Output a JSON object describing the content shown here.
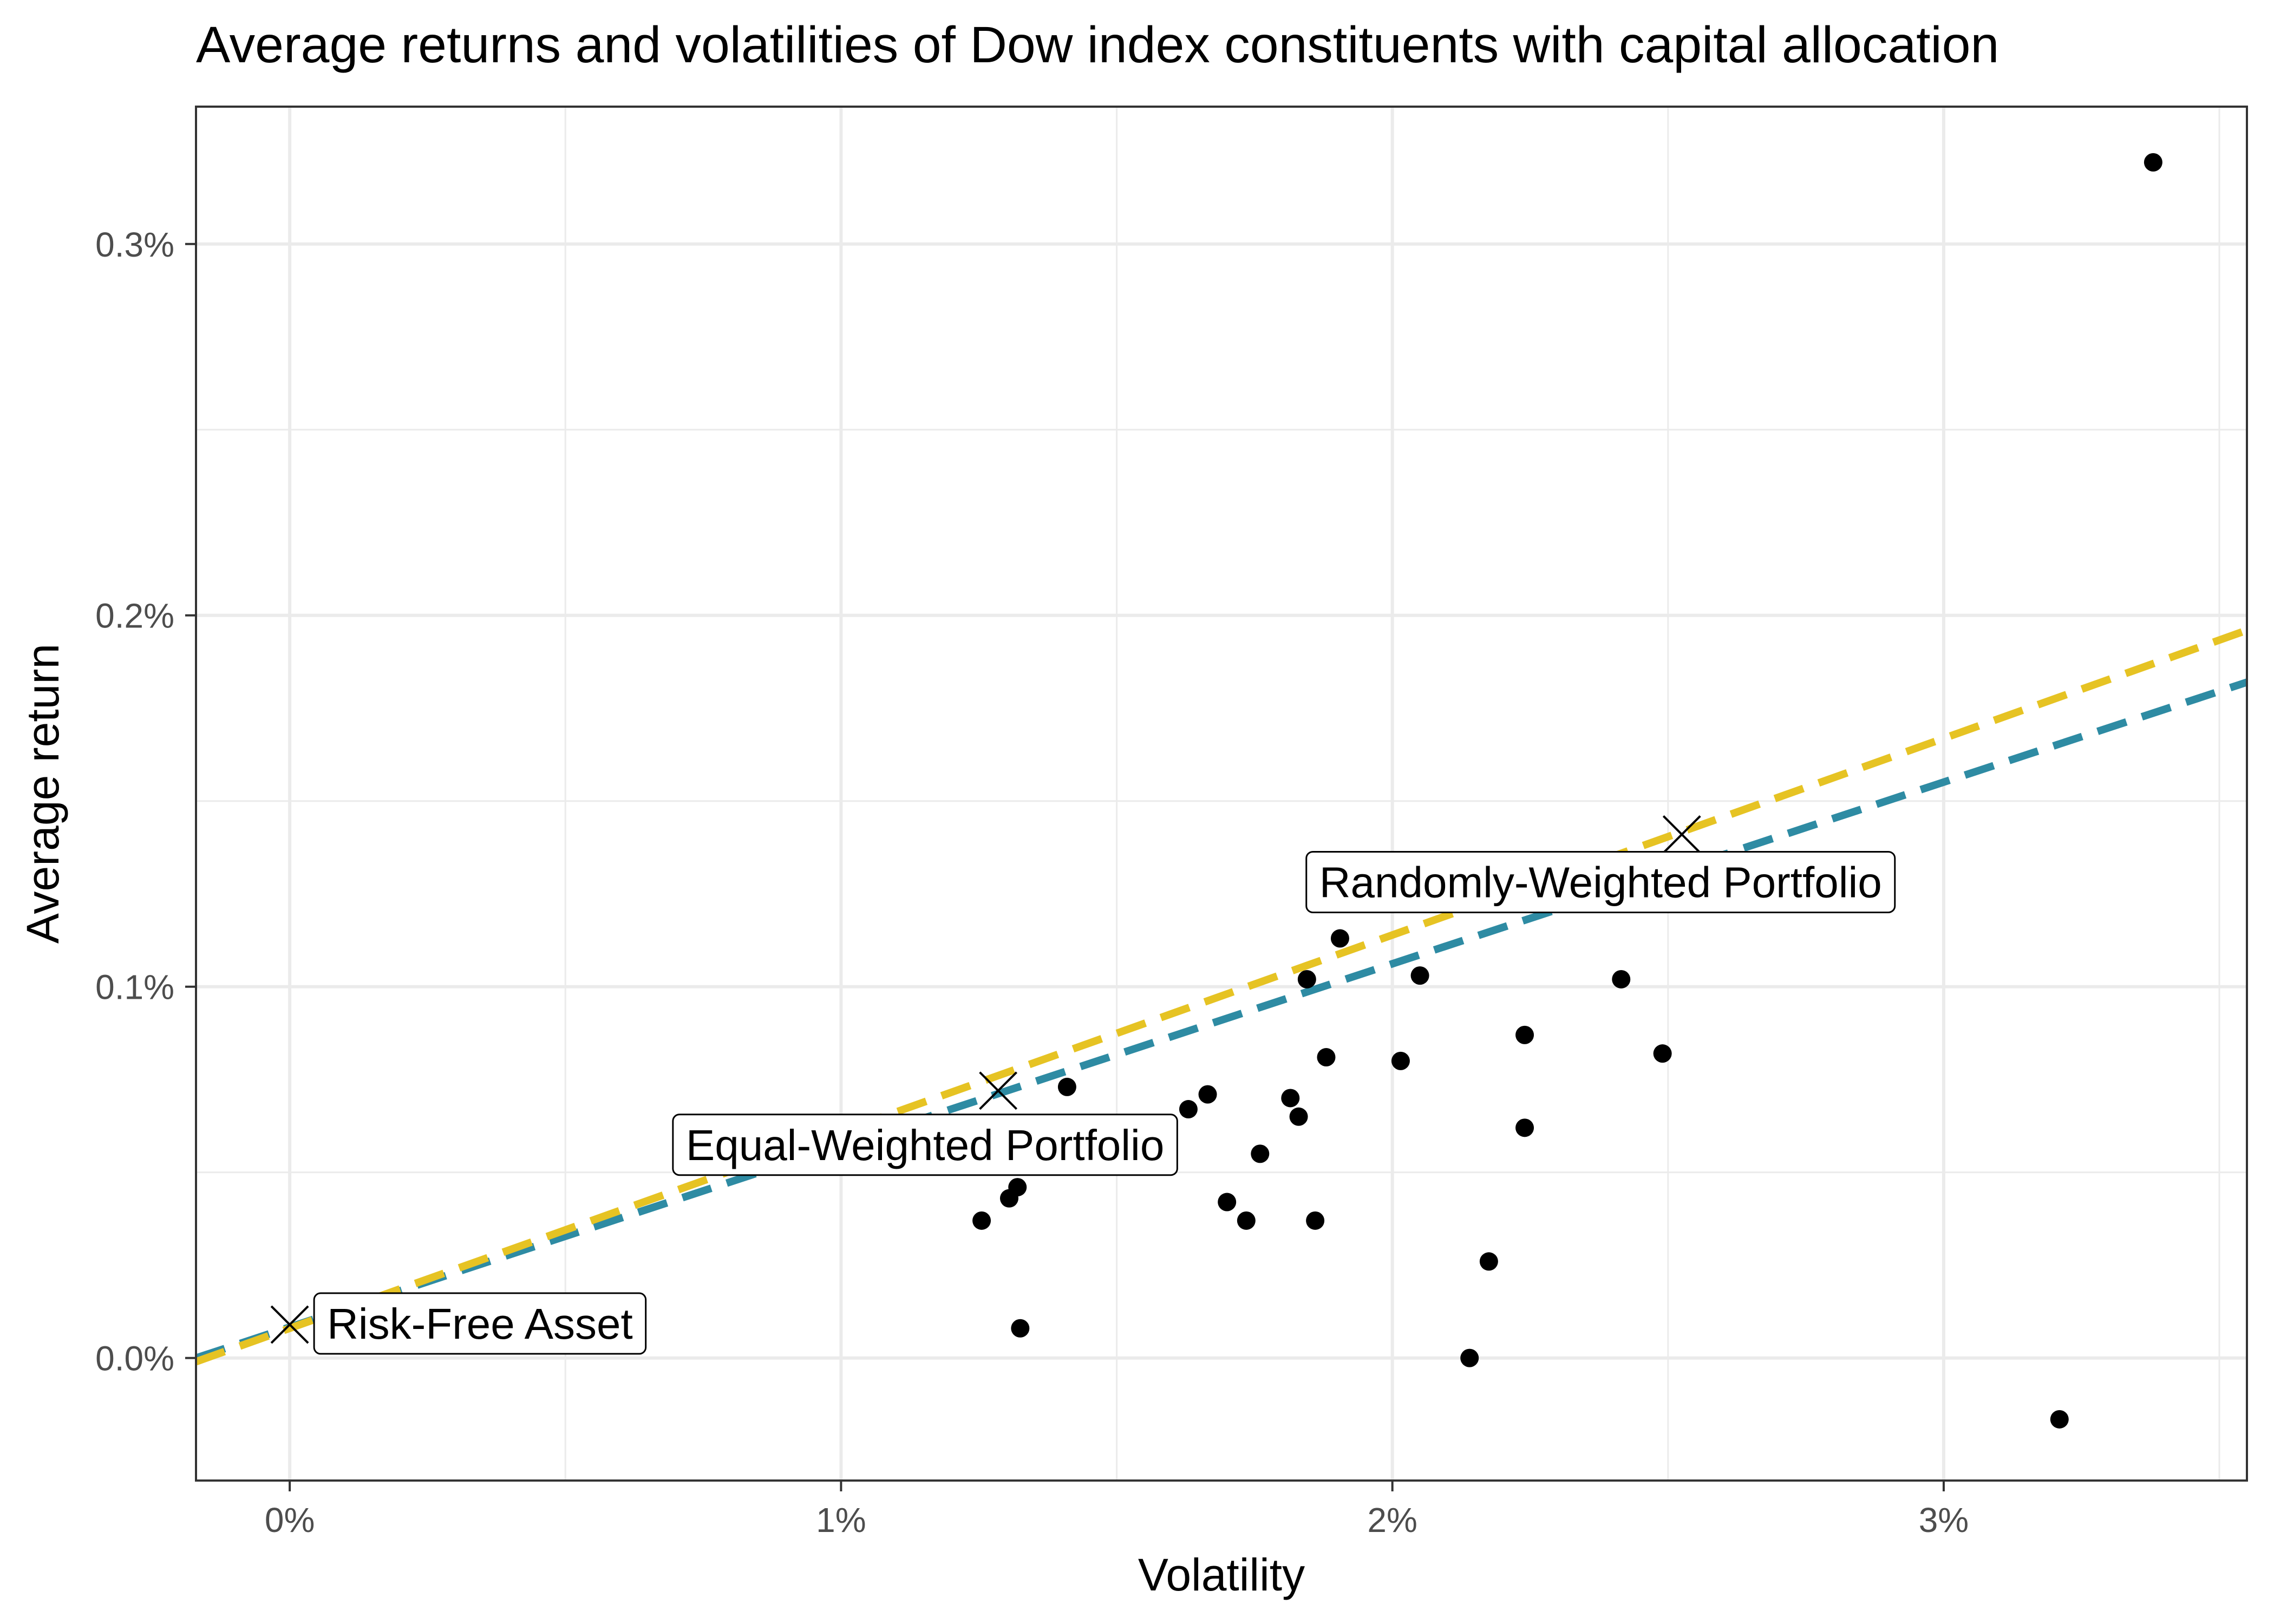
{
  "chart_data": {
    "type": "scatter",
    "title": "Average returns and volatilities of Dow index constituents with capital allocation",
    "xlabel": "Volatility",
    "ylabel": "Average return",
    "xlim": [
      -0.0017,
      0.0355
    ],
    "ylim": [
      -0.00033,
      0.00337
    ],
    "x_ticks": [
      0,
      0.01,
      0.02,
      0.03
    ],
    "x_tick_labels": [
      "0%",
      "1%",
      "2%",
      "3%"
    ],
    "y_ticks": [
      0,
      0.001,
      0.002,
      0.003
    ],
    "y_tick_labels": [
      "0.0%",
      "0.1%",
      "0.2%",
      "0.3%"
    ],
    "grid": true,
    "legend": "none",
    "colors": {
      "points": "#000000",
      "line_equal": "#2E8BA3",
      "line_random": "#E6C323",
      "grid": "#EBEBEB",
      "panel_border": "#333333"
    },
    "points": [
      {
        "x": 0.0338,
        "y": 0.00322
      },
      {
        "x": 0.0321,
        "y": -0.000165
      },
      {
        "x": 0.01997,
        "y": 0.00134
      },
      {
        "x": 0.01905,
        "y": 0.00113
      },
      {
        "x": 0.0205,
        "y": 0.00103
      },
      {
        "x": 0.01845,
        "y": 0.00102
      },
      {
        "x": 0.02415,
        "y": 0.00102
      },
      {
        "x": 0.0224,
        "y": 0.00087
      },
      {
        "x": 0.0249,
        "y": 0.00082
      },
      {
        "x": 0.0188,
        "y": 0.00081
      },
      {
        "x": 0.02015,
        "y": 0.0008
      },
      {
        "x": 0.0141,
        "y": 0.00073
      },
      {
        "x": 0.01665,
        "y": 0.00071
      },
      {
        "x": 0.01815,
        "y": 0.0007
      },
      {
        "x": 0.0163,
        "y": 0.00067
      },
      {
        "x": 0.0183,
        "y": 0.00065
      },
      {
        "x": 0.0224,
        "y": 0.00062
      },
      {
        "x": 0.0176,
        "y": 0.00055
      },
      {
        "x": 0.0132,
        "y": 0.00046
      },
      {
        "x": 0.01305,
        "y": 0.00043
      },
      {
        "x": 0.017,
        "y": 0.00042
      },
      {
        "x": 0.01255,
        "y": 0.00037
      },
      {
        "x": 0.01735,
        "y": 0.00037
      },
      {
        "x": 0.0186,
        "y": 0.00037
      },
      {
        "x": 0.02175,
        "y": 0.00026
      },
      {
        "x": 0.01325,
        "y": 8e-05
      },
      {
        "x": 0.0214,
        "y": 0.0
      }
    ],
    "portfolios": [
      {
        "label": "Risk-Free Asset",
        "x": 0.0,
        "y": 9e-05
      },
      {
        "label": "Equal-Weighted Portfolio",
        "x": 0.01285,
        "y": 0.00072
      },
      {
        "label": "Randomly-Weighted Portfolio",
        "x": 0.02525,
        "y": 0.00141
      }
    ],
    "lines": [
      {
        "color_key": "line_equal",
        "x0": -0.0017,
        "y0": 0.0,
        "x1": 0.0355,
        "y1": 0.00182
      },
      {
        "color_key": "line_random",
        "x0": -0.0017,
        "y0": -1e-05,
        "x1": 0.0355,
        "y1": 0.00196
      }
    ]
  }
}
